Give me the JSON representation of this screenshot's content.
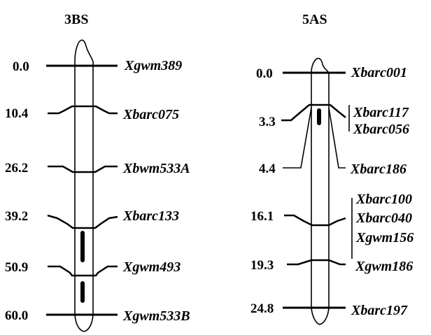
{
  "chromosomes": [
    {
      "title": "3BS",
      "markers": [
        {
          "position": "0.0",
          "name": "Xgwm389"
        },
        {
          "position": "10.4",
          "name": "Xbarc075"
        },
        {
          "position": "26.2",
          "name": "Xbwm533A"
        },
        {
          "position": "39.2",
          "name": "Xbarc133"
        },
        {
          "position": "50.9",
          "name": "Xgwm493"
        },
        {
          "position": "60.0",
          "name": "Xgwm533B"
        }
      ]
    },
    {
      "title": "5AS",
      "markers": [
        {
          "position": "0.0",
          "name": "Xbarc001"
        },
        {
          "position": "3.3",
          "names": [
            "Xbarc117",
            "Xbarc056"
          ]
        },
        {
          "position": "4.4",
          "name": "Xbarc186"
        },
        {
          "position": "16.1",
          "names": [
            "Xbarc100",
            "Xbarc040",
            "Xgwm156"
          ]
        },
        {
          "position": "19.3",
          "name": "Xgwm186"
        },
        {
          "position": "24.8",
          "name": "Xbarc197"
        }
      ]
    }
  ]
}
